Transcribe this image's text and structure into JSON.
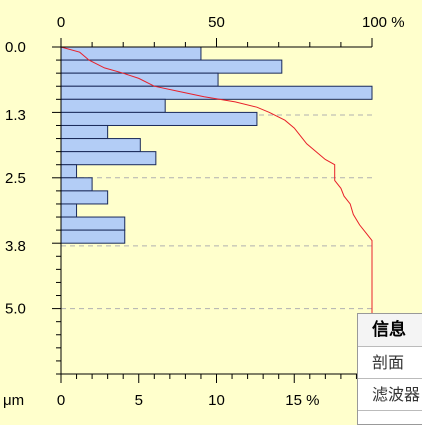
{
  "chart_data": {
    "type": "bar",
    "orientation": "horizontal",
    "unit_label": "μm",
    "top_axis": {
      "ticks": [
        "0",
        "50",
        "100 %"
      ],
      "range": [
        0,
        100
      ]
    },
    "bottom_axis": {
      "ticks": [
        "0",
        "5",
        "10",
        "15 %"
      ],
      "range": [
        0,
        20
      ]
    },
    "left_axis": {
      "ticks": [
        "0.0",
        "1.3",
        "2.5",
        "3.8",
        "5.0"
      ],
      "range": [
        0,
        6.25
      ]
    },
    "bars": [
      {
        "from": 0.0,
        "to": 0.25,
        "value": 9.0
      },
      {
        "from": 0.25,
        "to": 0.5,
        "value": 14.2
      },
      {
        "from": 0.5,
        "to": 0.75,
        "value": 10.1
      },
      {
        "from": 0.75,
        "to": 1.0,
        "value": 20.5
      },
      {
        "from": 1.0,
        "to": 1.25,
        "value": 6.7
      },
      {
        "from": 1.25,
        "to": 1.5,
        "value": 12.6
      },
      {
        "from": 1.5,
        "to": 1.75,
        "value": 3.0
      },
      {
        "from": 1.75,
        "to": 2.0,
        "value": 5.1
      },
      {
        "from": 2.0,
        "to": 2.25,
        "value": 6.1
      },
      {
        "from": 2.25,
        "to": 2.5,
        "value": 1.0
      },
      {
        "from": 2.5,
        "to": 2.75,
        "value": 2.0
      },
      {
        "from": 2.75,
        "to": 3.0,
        "value": 3.0
      },
      {
        "from": 3.0,
        "to": 3.25,
        "value": 1.0
      },
      {
        "from": 3.25,
        "to": 3.5,
        "value": 4.1
      },
      {
        "from": 3.5,
        "to": 3.75,
        "value": 4.1
      }
    ],
    "cumulative": [
      [
        0.0,
        0
      ],
      [
        0.1,
        6
      ],
      [
        0.25,
        9
      ],
      [
        0.4,
        14
      ],
      [
        0.5,
        20
      ],
      [
        0.6,
        25
      ],
      [
        0.75,
        30
      ],
      [
        0.85,
        38
      ],
      [
        0.95,
        46
      ],
      [
        1.05,
        56
      ],
      [
        1.15,
        63
      ],
      [
        1.25,
        67
      ],
      [
        1.4,
        72
      ],
      [
        1.55,
        75
      ],
      [
        1.7,
        77
      ],
      [
        1.85,
        79
      ],
      [
        2.0,
        82
      ],
      [
        2.15,
        85
      ],
      [
        2.25,
        88
      ],
      [
        2.4,
        88
      ],
      [
        2.55,
        88
      ],
      [
        2.7,
        90
      ],
      [
        2.85,
        91
      ],
      [
        3.0,
        93
      ],
      [
        3.2,
        94
      ],
      [
        3.4,
        96
      ],
      [
        3.55,
        98
      ],
      [
        3.7,
        100
      ],
      [
        3.85,
        100
      ],
      [
        6.25,
        100
      ]
    ],
    "colors": {
      "bar_fill": "#b3cdf6",
      "bar_stroke": "#1a2a5a",
      "cumulative_line": "#e8202a",
      "gridline": "#b0b0b0"
    }
  },
  "info_panel": {
    "header": "信息",
    "rows": [
      "剖面",
      "滤波器"
    ]
  }
}
